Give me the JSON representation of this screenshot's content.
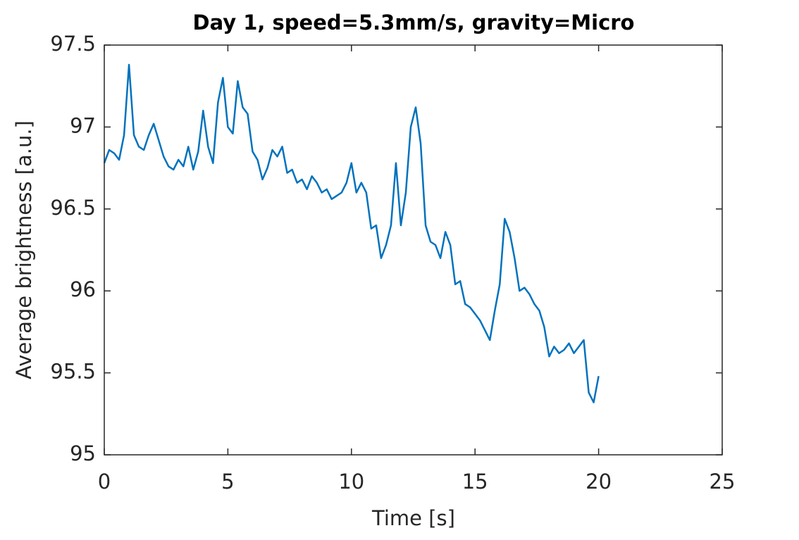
{
  "chart_data": {
    "type": "line",
    "title": "Day 1, speed=5.3mm/s, gravity=Micro",
    "xlabel": "Time [s]",
    "ylabel": "Average brightness [a.u.]",
    "xlim": [
      0,
      25
    ],
    "xticks": [
      0,
      5,
      10,
      15,
      20,
      25
    ],
    "ylim": [
      95,
      97.5
    ],
    "yticks": [
      95,
      95.5,
      96,
      96.5,
      97,
      97.5
    ],
    "x": [
      0,
      0.2,
      0.4,
      0.6,
      0.8,
      1,
      1.2,
      1.4,
      1.6,
      1.8,
      2,
      2.2,
      2.4,
      2.6,
      2.8,
      3,
      3.2,
      3.4,
      3.6,
      3.8,
      4,
      4.2,
      4.4,
      4.6,
      4.8,
      5,
      5.2,
      5.4,
      5.6,
      5.8,
      6,
      6.2,
      6.4,
      6.6,
      6.8,
      7,
      7.2,
      7.4,
      7.6,
      7.8,
      8,
      8.2,
      8.4,
      8.6,
      8.8,
      9,
      9.2,
      9.4,
      9.6,
      9.8,
      10,
      10.2,
      10.4,
      10.6,
      10.8,
      11,
      11.2,
      11.4,
      11.6,
      11.8,
      12,
      12.2,
      12.4,
      12.6,
      12.8,
      13,
      13.2,
      13.4,
      13.6,
      13.8,
      14,
      14.2,
      14.4,
      14.6,
      14.8,
      15,
      15.2,
      15.4,
      15.6,
      15.8,
      16,
      16.2,
      16.4,
      16.6,
      16.8,
      17,
      17.2,
      17.4,
      17.6,
      17.8,
      18,
      18.2,
      18.4,
      18.6,
      18.8,
      19,
      19.2,
      19.4,
      19.6,
      19.8,
      20
    ],
    "series": [
      {
        "name": "brightness",
        "color": "#0072bd",
        "values": [
          96.78,
          96.86,
          96.84,
          96.8,
          96.95,
          97.38,
          96.95,
          96.88,
          96.86,
          96.95,
          97.02,
          96.92,
          96.82,
          96.76,
          96.74,
          96.8,
          96.76,
          96.88,
          96.74,
          96.85,
          97.1,
          96.88,
          96.78,
          97.15,
          97.3,
          97.0,
          96.96,
          97.28,
          97.12,
          97.08,
          96.85,
          96.8,
          96.68,
          96.75,
          96.86,
          96.82,
          96.88,
          96.72,
          96.74,
          96.66,
          96.68,
          96.62,
          96.7,
          96.66,
          96.6,
          96.62,
          96.56,
          96.58,
          96.6,
          96.66,
          96.78,
          96.6,
          96.66,
          96.6,
          96.38,
          96.4,
          96.2,
          96.28,
          96.4,
          96.78,
          96.4,
          96.6,
          97.0,
          97.12,
          96.9,
          96.4,
          96.3,
          96.28,
          96.2,
          96.36,
          96.28,
          96.04,
          96.06,
          95.92,
          95.9,
          95.86,
          95.82,
          95.76,
          95.7,
          95.88,
          96.04,
          96.44,
          96.36,
          96.2,
          96.0,
          96.02,
          95.98,
          95.92,
          95.88,
          95.78,
          95.6,
          95.66,
          95.62,
          95.64,
          95.68,
          95.62,
          95.66,
          95.7,
          95.38,
          95.32,
          95.48
        ]
      }
    ]
  }
}
